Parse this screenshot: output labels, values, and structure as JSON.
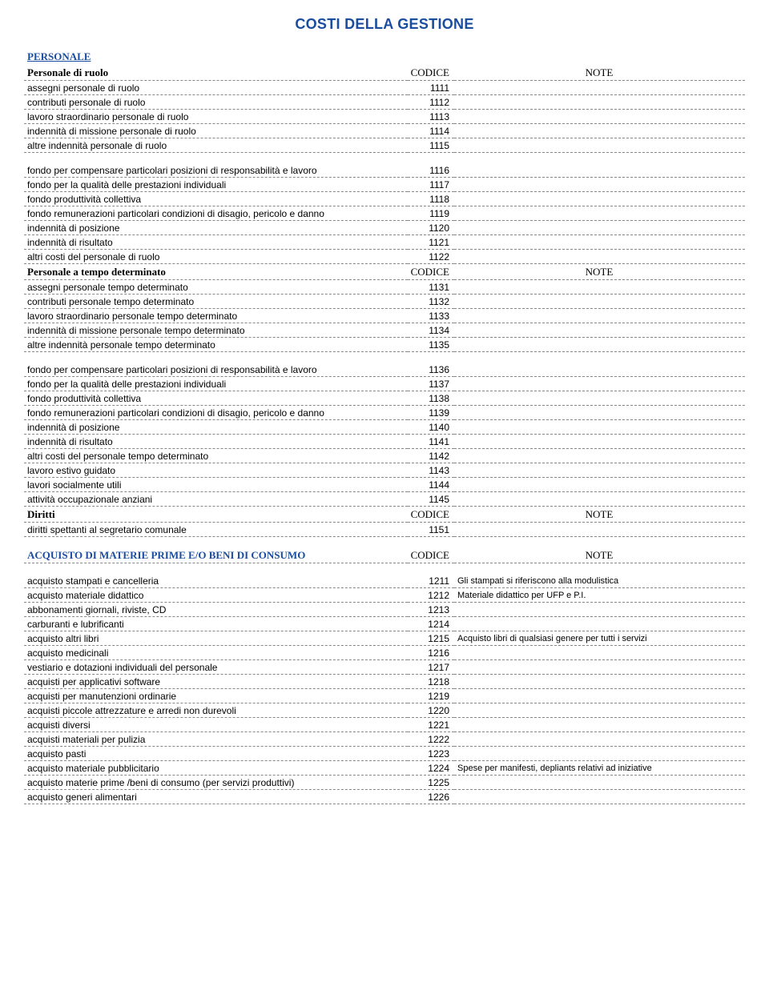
{
  "page_title": "COSTI DELLA GESTIONE",
  "headers": {
    "codice": "CODICE",
    "note": "NOTE"
  },
  "sections": [
    {
      "category_label": "PERSONALE",
      "groups": [
        {
          "title": "Personale di ruolo",
          "rows": [
            {
              "label": "assegni personale di ruolo",
              "code": "1111",
              "note": ""
            },
            {
              "label": "contributi personale di ruolo",
              "code": "1112",
              "note": ""
            },
            {
              "label": "lavoro straordinario personale di ruolo",
              "code": "1113",
              "note": ""
            },
            {
              "label": "indennità di missione personale di ruolo",
              "code": "1114",
              "note": ""
            },
            {
              "label": "altre indennità personale di ruolo",
              "code": "1115",
              "note": ""
            }
          ],
          "spacer_after": true
        },
        {
          "title": null,
          "rows": [
            {
              "label": "fondo per compensare particolari posizioni di responsabilità e lavoro",
              "code": "1116",
              "note": ""
            },
            {
              "label": "fondo per la qualità delle prestazioni individuali",
              "code": "1117",
              "note": ""
            },
            {
              "label": "fondo produttività collettiva",
              "code": "1118",
              "note": ""
            },
            {
              "label": "fondo remunerazioni particolari condizioni di disagio, pericolo e danno",
              "code": "1119",
              "note": ""
            },
            {
              "label": "indennità di posizione",
              "code": "1120",
              "note": ""
            },
            {
              "label": "indennità di risultato",
              "code": "1121",
              "note": ""
            },
            {
              "label": "altri costi del personale di ruolo",
              "code": "1122",
              "note": ""
            }
          ],
          "spacer_after": false
        },
        {
          "title": "Personale a tempo determinato",
          "rows": [
            {
              "label": "assegni personale tempo determinato",
              "code": "1131",
              "note": ""
            },
            {
              "label": "contributi personale tempo determinato",
              "code": "1132",
              "note": ""
            },
            {
              "label": "lavoro straordinario personale tempo determinato",
              "code": "1133",
              "note": ""
            },
            {
              "label": "indennità di missione personale tempo determinato",
              "code": "1134",
              "note": ""
            },
            {
              "label": "altre indennità personale tempo determinato",
              "code": "1135",
              "note": ""
            }
          ],
          "spacer_after": true
        },
        {
          "title": null,
          "rows": [
            {
              "label": "fondo per compensare particolari posizioni di responsabilità e lavoro",
              "code": "1136",
              "note": ""
            },
            {
              "label": "fondo per la qualità delle prestazioni individuali",
              "code": "1137",
              "note": ""
            },
            {
              "label": "fondo produttività collettiva",
              "code": "1138",
              "note": ""
            },
            {
              "label": "fondo remunerazioni particolari condizioni di disagio, pericolo e danno",
              "code": "1139",
              "note": ""
            },
            {
              "label": "indennità di posizione",
              "code": "1140",
              "note": ""
            },
            {
              "label": "indennità di risultato",
              "code": "1141",
              "note": ""
            },
            {
              "label": "altri costi del personale tempo determinato",
              "code": "1142",
              "note": ""
            },
            {
              "label": "lavoro estivo guidato",
              "code": "1143",
              "note": ""
            },
            {
              "label": "lavori socialmente utili",
              "code": "1144",
              "note": ""
            },
            {
              "label": "attività occupazionale anziani",
              "code": "1145",
              "note": ""
            }
          ],
          "spacer_after": false
        },
        {
          "title": "Diritti",
          "rows": [
            {
              "label": "diritti spettanti al segretario comunale",
              "code": "1151",
              "note": ""
            }
          ],
          "spacer_after": true
        }
      ]
    },
    {
      "category_label": null,
      "acquisto_title": "ACQUISTO DI MATERIE PRIME E/O BENI DI CONSUMO",
      "groups": [
        {
          "title": null,
          "rows": [
            {
              "label": "acquisto stampati e cancelleria",
              "code": "1211",
              "note": "Gli stampati si riferiscono alla modulistica"
            },
            {
              "label": "acquisto materiale didattico",
              "code": "1212",
              "note": "Materiale didattico per UFP e P.I."
            },
            {
              "label": "abbonamenti giornali, riviste, CD",
              "code": "1213",
              "note": ""
            },
            {
              "label": "carburanti e lubrificanti",
              "code": "1214",
              "note": ""
            },
            {
              "label": "acquisto altri libri",
              "code": "1215",
              "note": "Acquisto libri di qualsiasi genere per tutti i servizi"
            },
            {
              "label": "acquisto medicinali",
              "code": "1216",
              "note": ""
            },
            {
              "label": "vestiario e dotazioni individuali del personale",
              "code": "1217",
              "note": ""
            },
            {
              "label": "acquisti per applicativi software",
              "code": "1218",
              "note": ""
            },
            {
              "label": "acquisti per manutenzioni ordinarie",
              "code": "1219",
              "note": ""
            },
            {
              "label": "acquisti piccole attrezzature e arredi non durevoli",
              "code": "1220",
              "note": ""
            },
            {
              "label": "acquisti diversi",
              "code": "1221",
              "note": ""
            },
            {
              "label": "acquisti materiali per pulizia",
              "code": "1222",
              "note": ""
            },
            {
              "label": "acquisto pasti",
              "code": "1223",
              "note": ""
            },
            {
              "label": "acquisto materiale pubblicitario",
              "code": "1224",
              "note": "Spese per manifesti, depliants relativi ad iniziative"
            },
            {
              "label": "acquisto materie prime /beni di consumo (per servizi produttivi)",
              "code": "1225",
              "note": ""
            },
            {
              "label": "acquisto generi alimentari",
              "code": "1226",
              "note": ""
            }
          ],
          "spacer_after": false
        }
      ]
    }
  ]
}
